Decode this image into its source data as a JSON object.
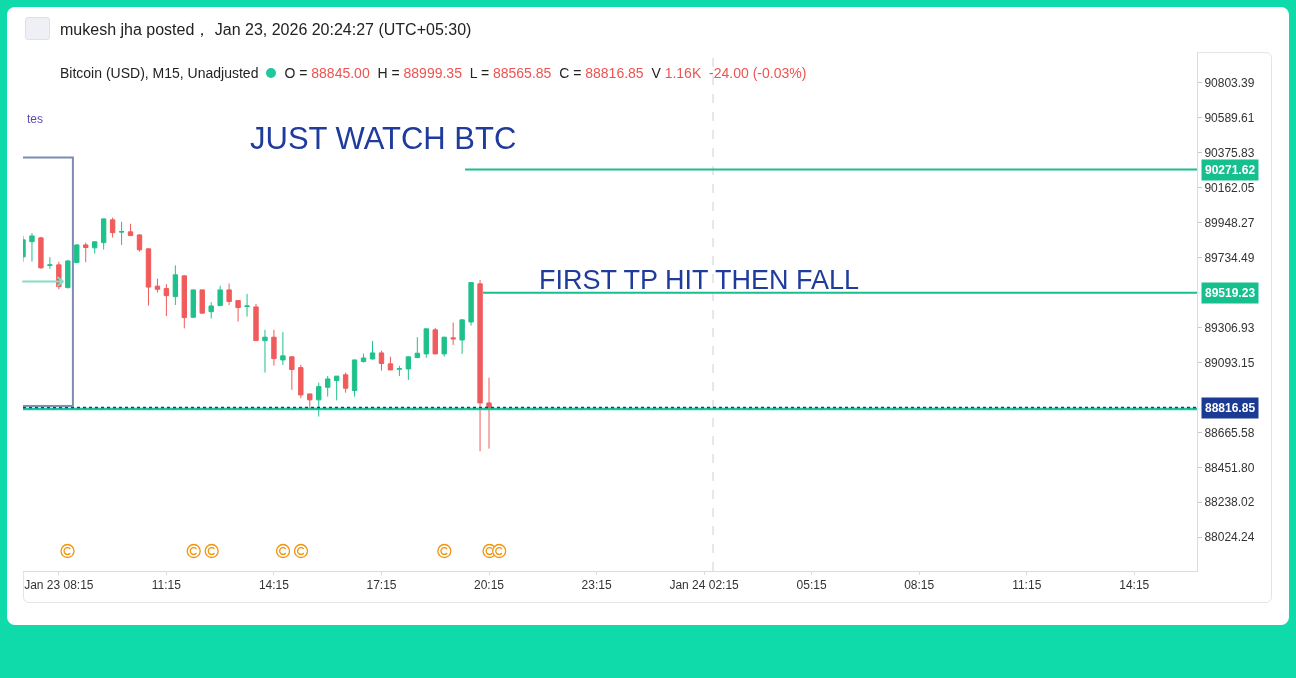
{
  "chart_data": {
    "type": "candlestick",
    "title": "mukesh jha posted， Jan 23, 2026 20:24:27 (UTC+05:30)",
    "subtitle": "Bitcoin (USD), M15, Unadjusted",
    "x": [
      "2026-01-23T07:15",
      "2026-01-23T07:30",
      "2026-01-23T07:45",
      "2026-01-23T08:00",
      "2026-01-23T08:15",
      "2026-01-23T08:30",
      "2026-01-23T08:45",
      "2026-01-23T09:00",
      "2026-01-23T09:15",
      "2026-01-23T09:30",
      "2026-01-23T09:45",
      "2026-01-23T10:00",
      "2026-01-23T10:15",
      "2026-01-23T10:30",
      "2026-01-23T10:45",
      "2026-01-23T11:00",
      "2026-01-23T11:15",
      "2026-01-23T11:30",
      "2026-01-23T11:45",
      "2026-01-23T12:00",
      "2026-01-23T12:15",
      "2026-01-23T12:30",
      "2026-01-23T12:45",
      "2026-01-23T13:00",
      "2026-01-23T13:15",
      "2026-01-23T13:30",
      "2026-01-23T13:45",
      "2026-01-23T14:00",
      "2026-01-23T14:15",
      "2026-01-23T14:30",
      "2026-01-23T14:45",
      "2026-01-23T15:00",
      "2026-01-23T15:15",
      "2026-01-23T15:30",
      "2026-01-23T15:45",
      "2026-01-23T16:00",
      "2026-01-23T16:15",
      "2026-01-23T16:30",
      "2026-01-23T16:45",
      "2026-01-23T17:00",
      "2026-01-23T17:15",
      "2026-01-23T17:30",
      "2026-01-23T17:45",
      "2026-01-23T18:00",
      "2026-01-23T18:15",
      "2026-01-23T18:30",
      "2026-01-23T18:45",
      "2026-01-23T19:00",
      "2026-01-23T19:15",
      "2026-01-23T19:30",
      "2026-01-23T19:45",
      "2026-01-23T20:00",
      "2026-01-23T20:15"
    ],
    "ohlc": [
      [
        89738,
        89866,
        89707,
        89842
      ],
      [
        89831,
        89883,
        89709,
        89866
      ],
      [
        89854,
        89860,
        89665,
        89671
      ],
      [
        89685,
        89736,
        89665,
        89689
      ],
      [
        89689,
        89709,
        89540,
        89556
      ],
      [
        89550,
        89720,
        89545,
        89713
      ],
      [
        89703,
        89815,
        89700,
        89811
      ],
      [
        89811,
        89825,
        89705,
        89795
      ],
      [
        89793,
        89832,
        89758,
        89830
      ],
      [
        89825,
        89972,
        89783,
        89970
      ],
      [
        89964,
        89978,
        89856,
        89886
      ],
      [
        89889,
        89952,
        89811,
        89893
      ],
      [
        89891,
        89940,
        89865,
        89868
      ],
      [
        89872,
        89875,
        89770,
        89781
      ],
      [
        89787,
        89790,
        89440,
        89553
      ],
      [
        89559,
        89605,
        89520,
        89540
      ],
      [
        89544,
        89571,
        89375,
        89501
      ],
      [
        89495,
        89686,
        89444,
        89628
      ],
      [
        89622,
        89625,
        89301,
        89367
      ],
      [
        89369,
        89538,
        89363,
        89536
      ],
      [
        89536,
        89538,
        89390,
        89394
      ],
      [
        89403,
        89461,
        89361,
        89438
      ],
      [
        89440,
        89561,
        89437,
        89536
      ],
      [
        89536,
        89575,
        89443,
        89465
      ],
      [
        89471,
        89473,
        89342,
        89428
      ],
      [
        89434,
        89512,
        89373,
        89438
      ],
      [
        89432,
        89450,
        89224,
        89226
      ],
      [
        89226,
        89292,
        89031,
        89247
      ],
      [
        89247,
        89292,
        89073,
        89116
      ],
      [
        89108,
        89278,
        89078,
        89133
      ],
      [
        89127,
        89130,
        88925,
        89049
      ],
      [
        89061,
        89078,
        88874,
        88894
      ],
      [
        88900,
        88903,
        88803,
        88864
      ],
      [
        88864,
        88969,
        88762,
        88945
      ],
      [
        88941,
        89010,
        88884,
        88992
      ],
      [
        88982,
        89010,
        88861,
        89009
      ],
      [
        89017,
        89031,
        88908,
        88935
      ],
      [
        88921,
        89110,
        88884,
        89108
      ],
      [
        89098,
        89147,
        89092,
        89120
      ],
      [
        89114,
        89224,
        89110,
        89151
      ],
      [
        89151,
        89165,
        89043,
        89086
      ],
      [
        89084,
        89128,
        89045,
        89047
      ],
      [
        89051,
        89072,
        89010,
        89055
      ],
      [
        89053,
        89128,
        88986,
        89127
      ],
      [
        89122,
        89247,
        89120,
        89149
      ],
      [
        89145,
        89300,
        89122,
        89298
      ],
      [
        89292,
        89304,
        89142,
        89145
      ],
      [
        89145,
        89250,
        89128,
        89247
      ],
      [
        89243,
        89336,
        89200,
        89237
      ],
      [
        89230,
        89355,
        89145,
        89353
      ],
      [
        89340,
        89583,
        89318,
        89581
      ],
      [
        89573,
        89597,
        88550,
        88845
      ],
      [
        88845.0,
        88999.35,
        88565.85,
        88816.85
      ]
    ],
    "colors": [
      "#20c08c",
      "#20c08c",
      "#f05b5b",
      "#20c08c",
      "#f05b5b",
      "#20c08c",
      "#20c08c",
      "#f05b5b",
      "#20c08c",
      "#20c08c",
      "#f05b5b",
      "#20c08c",
      "#f05b5b",
      "#f05b5b",
      "#f05b5b",
      "#f05b5b",
      "#f05b5b",
      "#20c08c",
      "#f05b5b",
      "#20c08c",
      "#f05b5b",
      "#20c08c",
      "#20c08c",
      "#f05b5b",
      "#f05b5b",
      "#20c08c",
      "#f05b5b",
      "#20c08c",
      "#f05b5b",
      "#20c08c",
      "#f05b5b",
      "#f05b5b",
      "#f05b5b",
      "#20c08c",
      "#20c08c",
      "#20c08c",
      "#f05b5b",
      "#20c08c",
      "#20c08c",
      "#20c08c",
      "#f05b5b",
      "#f05b5b",
      "#20c08c",
      "#20c08c",
      "#20c08c",
      "#20c08c",
      "#f05b5b",
      "#20c08c",
      "#f05b5b",
      "#20c08c",
      "#20c08c",
      "#f05b5b",
      "#f05b5b"
    ],
    "series": [
      {
        "type": "line",
        "color": "#17bf8e",
        "x": [
          "2026-01-23T19:35",
          "2026-01-24T16:00"
        ],
        "values": [
          90271.62,
          90271.62
        ],
        "value_labels": [
          null,
          "90271.62"
        ]
      },
      {
        "type": "line",
        "color": "#17bf8e",
        "x": [
          "2026-01-23T20:05",
          "2026-01-24T16:00"
        ],
        "values": [
          89519.23,
          89519.23
        ],
        "value_labels": [
          null,
          "89519.23"
        ]
      }
    ],
    "ref_lines": [
      {
        "axis": "y",
        "value": 88808,
        "color": "#1dc69b"
      },
      {
        "axis": "y",
        "value": 88816.85,
        "label": "88816.85",
        "color": "#1b3a93",
        "line_style": "dotted"
      },
      {
        "axis": "x",
        "value": "2026-01-24T02:30",
        "color": "#cfcfcf",
        "line_style": "dashed"
      }
    ],
    "annotations": [
      "O = 88845.00  H = 88999.35  L = 88565.85  C = 88816.85  V 1.16K  -24.00 (-0.03%)",
      "tes",
      "JUST WATCH BTC",
      "FIRST TP HIT THEN FALL"
    ],
    "xlim": [
      "2026-01-23T07:15",
      "2026-01-24T16:00"
    ],
    "ylim": [
      87818,
      90990
    ],
    "xticks": [
      {
        "value": "2026-01-23T08:15",
        "label": "Jan 23 08:15"
      },
      {
        "value": "2026-01-23T11:15",
        "label": "11:15"
      },
      {
        "value": "2026-01-23T14:15",
        "label": "14:15"
      },
      {
        "value": "2026-01-23T17:15",
        "label": "17:15"
      },
      {
        "value": "2026-01-23T20:15",
        "label": "20:15"
      },
      {
        "value": "2026-01-23T23:15",
        "label": "23:15"
      },
      {
        "value": "2026-01-24T02:15",
        "label": "Jan 24 02:15"
      },
      {
        "value": "2026-01-24T05:15",
        "label": "05:15"
      },
      {
        "value": "2026-01-24T08:15",
        "label": "08:15"
      },
      {
        "value": "2026-01-24T11:15",
        "label": "11:15"
      },
      {
        "value": "2026-01-24T14:15",
        "label": "14:15"
      }
    ],
    "yticks": [
      90803.39,
      90589.61,
      90375.83,
      90162.05,
      89948.27,
      89734.49,
      89306.93,
      89093.15,
      88665.58,
      {
        "value": 88451.8,
        "label": "88451.80"
      },
      88238.02,
      88024.24
    ]
  }
}
